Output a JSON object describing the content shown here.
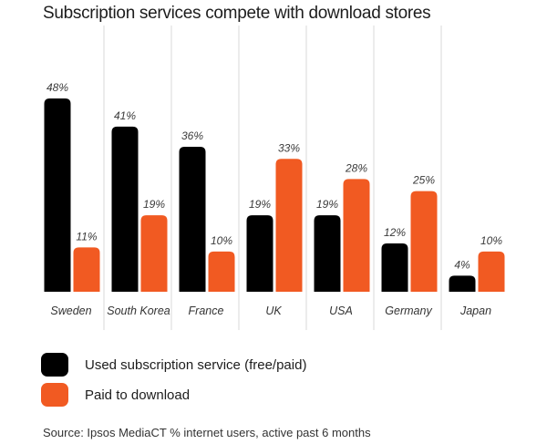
{
  "chart_data": {
    "type": "bar",
    "title": "Subscription services compete with download stores",
    "categories": [
      "Sweden",
      "South Korea",
      "France",
      "UK",
      "USA",
      "Germany",
      "Japan"
    ],
    "series": [
      {
        "name": "Used subscription service (free/paid)",
        "values": [
          48,
          41,
          36,
          19,
          19,
          12,
          4
        ],
        "labels": [
          "48%",
          "41%",
          "36%",
          "19%",
          "19%",
          "12%",
          "4%"
        ],
        "color": "#000000"
      },
      {
        "name": "Paid to download",
        "values": [
          11,
          19,
          10,
          33,
          28,
          25,
          10
        ],
        "labels": [
          "11%",
          "19%",
          "10%",
          "33%",
          "28%",
          "25%",
          "10%"
        ],
        "color": "#f15a22"
      }
    ],
    "ylim": [
      0,
      50
    ],
    "xlabel": "",
    "ylabel": "",
    "grid": false,
    "legend": "bottom",
    "source": "Source: Ipsos MediaCT % internet users, active past 6 months"
  }
}
